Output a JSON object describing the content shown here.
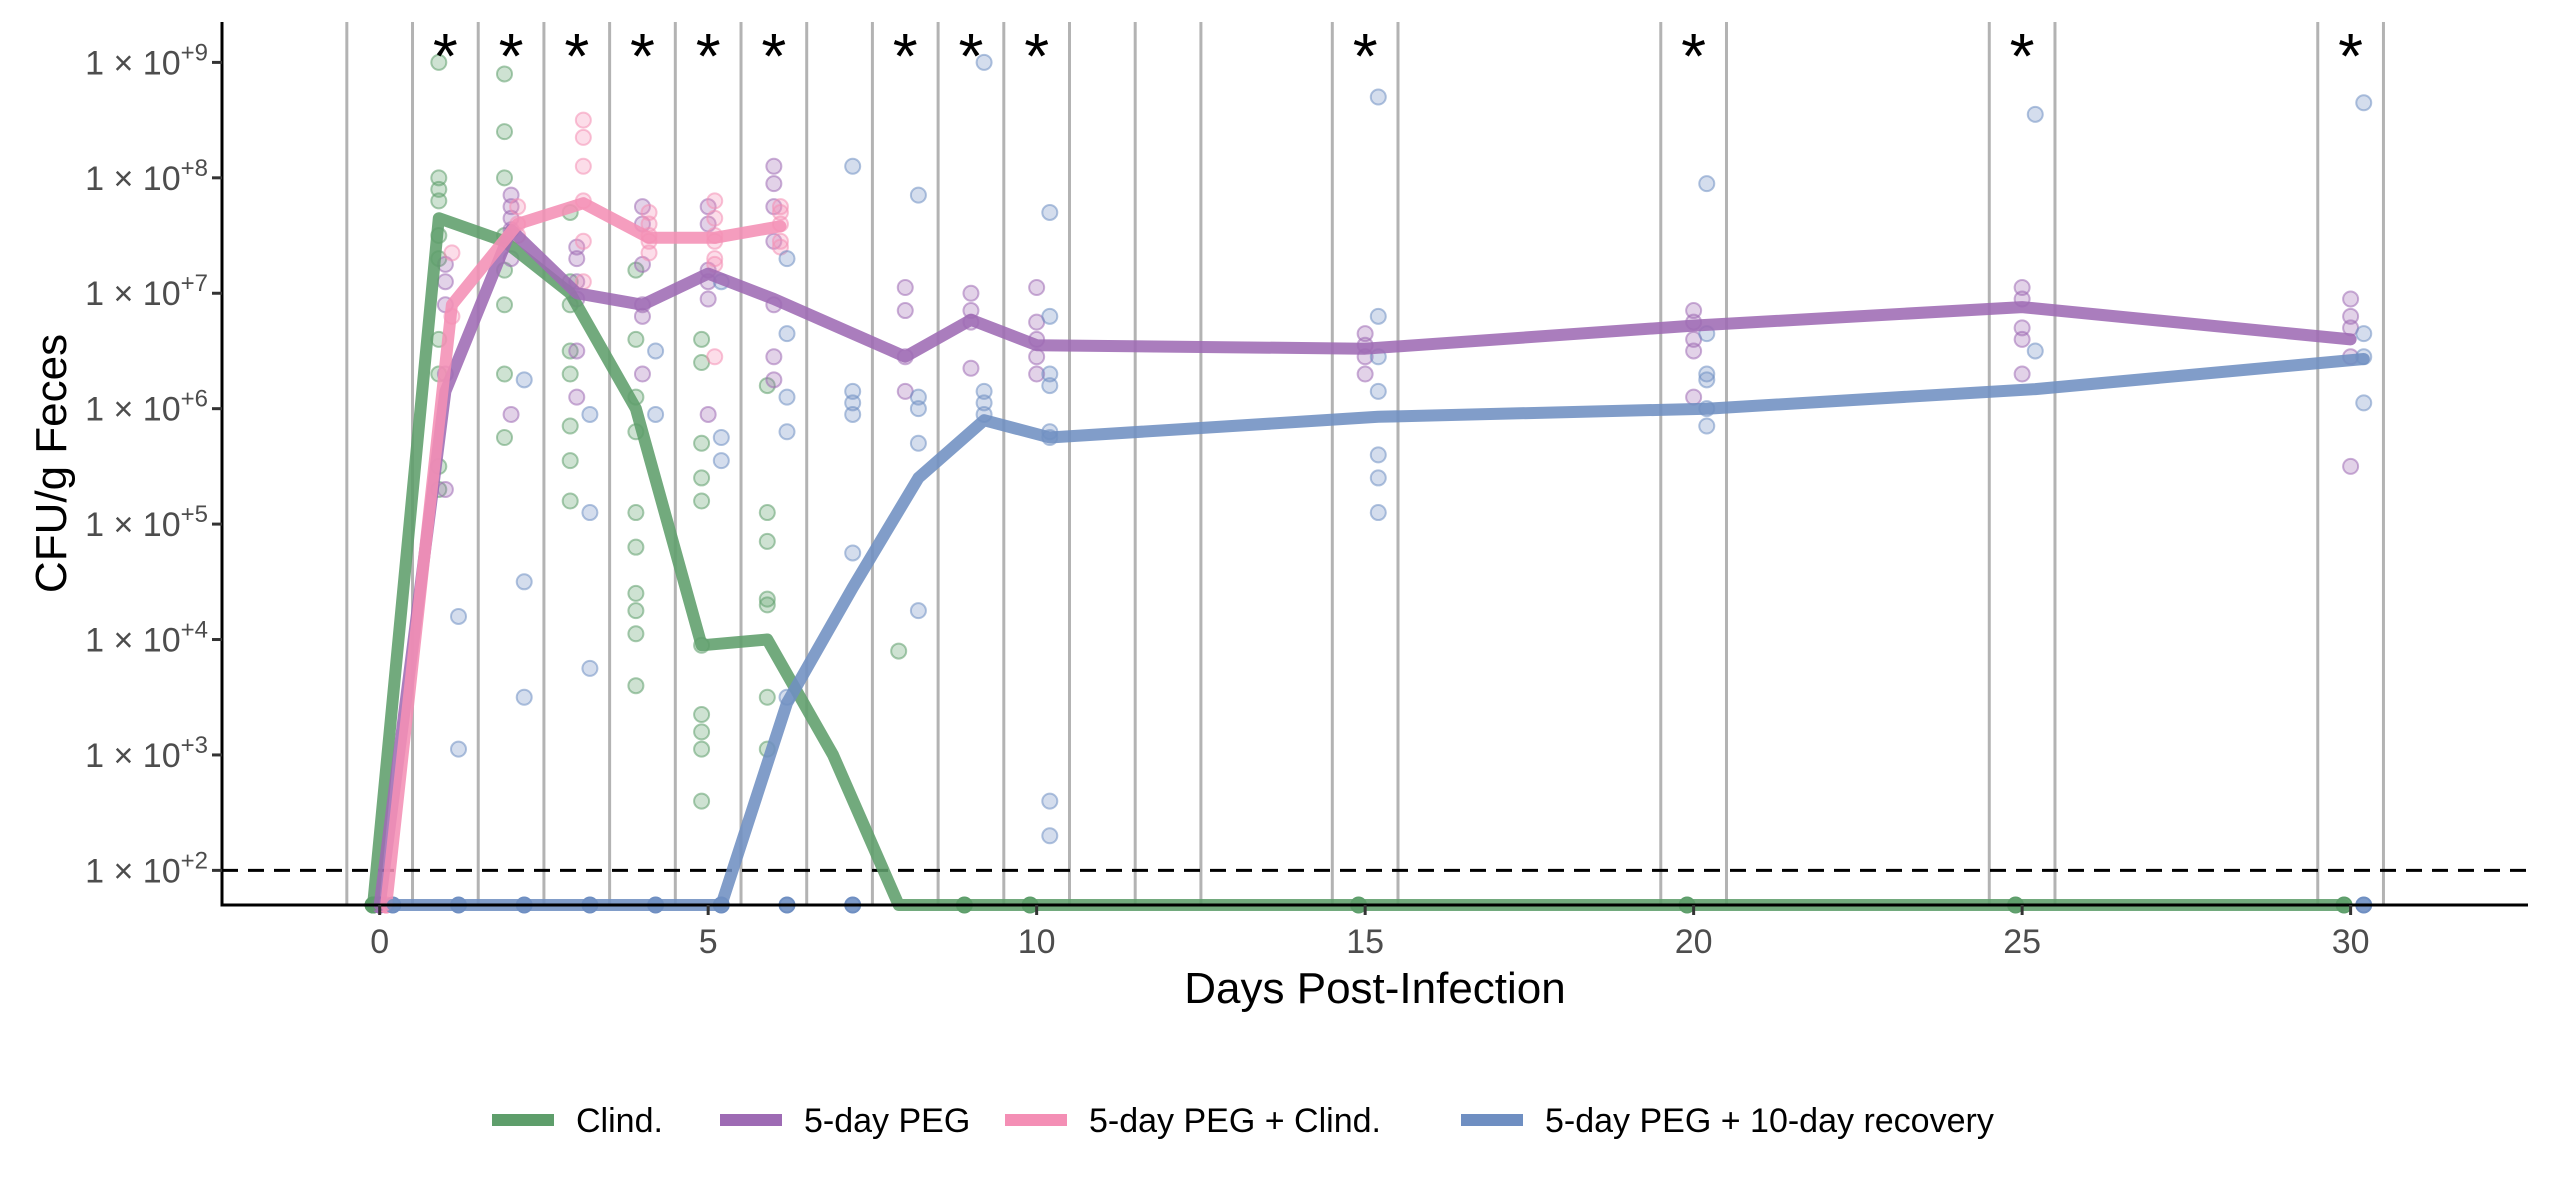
{
  "chart_data": {
    "type": "line",
    "title": "",
    "xlabel": "Days Post-Infection",
    "ylabel": "CFU/g Feces",
    "xlim": [
      -2.4,
      32.7
    ],
    "ylim_log10": [
      1.7,
      9.35
    ],
    "x_ticks": [
      0,
      5,
      10,
      15,
      20,
      25,
      30
    ],
    "x_tick_labels": [
      "0",
      "5",
      "10",
      "15",
      "20",
      "25",
      "30"
    ],
    "y_ticks": [
      {
        "value": 2,
        "base": "1 × 10",
        "exp": "+2"
      },
      {
        "value": 3,
        "base": "1 × 10",
        "exp": "+3"
      },
      {
        "value": 4,
        "base": "1 × 10",
        "exp": "+4"
      },
      {
        "value": 5,
        "base": "1 × 10",
        "exp": "+5"
      },
      {
        "value": 6,
        "base": "1 × 10",
        "exp": "+6"
      },
      {
        "value": 7,
        "base": "1 × 10",
        "exp": "+7"
      },
      {
        "value": 8,
        "base": "1 × 10",
        "exp": "+8"
      },
      {
        "value": 9,
        "base": "1 × 10",
        "exp": "+9"
      }
    ],
    "detection_limit_log10": 2,
    "baseline_log10": 1.7,
    "day_separators": [
      -0.5,
      0.5,
      1.5,
      2.5,
      3.5,
      4.5,
      5.5,
      6.5,
      7.5,
      8.5,
      9.5,
      10.5,
      11.5,
      12.5,
      14.5,
      15.5,
      19.5,
      20.5,
      24.5,
      25.5,
      29.5,
      30.5
    ],
    "significance": {
      "symbol": "*",
      "days": [
        1,
        2,
        3,
        4,
        5,
        6,
        8,
        9,
        10,
        15,
        20,
        25,
        30
      ]
    },
    "series": [
      {
        "name": "Clind.",
        "color": "#5e9e6b",
        "offset": -0.1,
        "median_log10": [
          [
            0,
            1.7
          ],
          [
            1,
            7.65
          ],
          [
            2,
            7.45
          ],
          [
            3,
            7.0
          ],
          [
            4,
            6.0
          ],
          [
            5,
            3.95
          ],
          [
            6,
            4.0
          ],
          [
            7,
            3.0
          ],
          [
            8,
            1.7
          ],
          [
            9,
            1.7
          ],
          [
            10,
            1.7
          ],
          [
            15,
            1.7
          ],
          [
            20,
            1.7
          ],
          [
            25,
            1.7
          ],
          [
            30,
            1.7
          ]
        ],
        "points_log10": [
          [
            0,
            [
              1.7,
              1.7,
              1.7
            ]
          ],
          [
            1,
            [
              9.0,
              8.0,
              7.9,
              7.8,
              7.5,
              7.3,
              6.6,
              6.3,
              5.5,
              5.3
            ]
          ],
          [
            2,
            [
              8.9,
              8.4,
              8.0,
              7.5,
              7.2,
              6.9,
              6.3,
              5.75
            ]
          ],
          [
            3,
            [
              7.7,
              7.1,
              6.9,
              6.5,
              6.3,
              5.85,
              5.55,
              5.2
            ]
          ],
          [
            4,
            [
              7.2,
              6.6,
              6.1,
              5.8,
              5.1,
              4.8,
              4.4,
              4.25,
              4.05,
              3.6
            ]
          ],
          [
            5,
            [
              6.6,
              6.4,
              5.7,
              5.4,
              5.2,
              3.95,
              3.35,
              3.2,
              3.05,
              2.6
            ]
          ],
          [
            6,
            [
              6.2,
              5.1,
              4.85,
              4.35,
              4.3,
              3.5,
              3.05
            ]
          ],
          [
            8,
            [
              3.9
            ]
          ],
          [
            9,
            [
              1.7
            ]
          ],
          [
            10,
            [
              1.7
            ]
          ],
          [
            15,
            [
              1.7
            ]
          ],
          [
            20,
            [
              1.7
            ]
          ],
          [
            25,
            [
              1.7
            ]
          ],
          [
            30,
            [
              1.7
            ]
          ]
        ]
      },
      {
        "name": "5-day PEG",
        "color": "#9e6bb4",
        "offset": 0,
        "median_log10": [
          [
            0,
            1.7
          ],
          [
            1,
            6.15
          ],
          [
            2,
            7.55
          ],
          [
            3,
            7.0
          ],
          [
            4,
            6.9
          ],
          [
            5,
            7.17
          ],
          [
            6,
            6.95
          ],
          [
            7,
            6.7
          ],
          [
            8,
            6.45
          ],
          [
            9,
            6.77
          ],
          [
            10,
            6.55
          ],
          [
            15,
            6.52
          ],
          [
            20,
            6.72
          ],
          [
            25,
            6.88
          ],
          [
            30,
            6.6
          ]
        ],
        "points_log10": [
          [
            0,
            [
              1.7,
              1.7
            ]
          ],
          [
            1,
            [
              7.25,
              7.1,
              6.9,
              6.3,
              5.3
            ]
          ],
          [
            2,
            [
              7.85,
              7.75,
              7.65,
              7.55,
              7.3,
              5.95
            ]
          ],
          [
            3,
            [
              7.4,
              7.3,
              7.1,
              6.95,
              6.5,
              6.1
            ]
          ],
          [
            4,
            [
              7.75,
              7.6,
              7.25,
              6.9,
              6.8,
              6.3
            ]
          ],
          [
            5,
            [
              7.75,
              7.6,
              7.2,
              7.1,
              6.95,
              5.95
            ]
          ],
          [
            6,
            [
              8.1,
              7.95,
              7.75,
              7.45,
              6.9,
              6.45,
              6.25
            ]
          ],
          [
            8,
            [
              7.05,
              6.85,
              6.45,
              6.15
            ]
          ],
          [
            9,
            [
              7.0,
              6.85,
              6.75,
              6.35
            ]
          ],
          [
            10,
            [
              7.05,
              6.75,
              6.6,
              6.45,
              6.3
            ]
          ],
          [
            15,
            [
              6.65,
              6.55,
              6.45,
              6.3
            ]
          ],
          [
            20,
            [
              6.85,
              6.75,
              6.6,
              6.5,
              6.1
            ]
          ],
          [
            25,
            [
              7.05,
              6.95,
              6.7,
              6.6,
              6.3
            ]
          ],
          [
            30,
            [
              6.95,
              6.8,
              6.7,
              6.45,
              5.5
            ]
          ]
        ]
      },
      {
        "name": "5-day PEG + Clind.",
        "color": "#f48fb5",
        "offset": 0.1,
        "median_log10": [
          [
            0,
            1.7
          ],
          [
            1,
            6.9
          ],
          [
            2,
            7.6
          ],
          [
            3,
            7.78
          ],
          [
            4,
            7.48
          ],
          [
            5,
            7.48
          ],
          [
            6,
            7.58
          ]
        ],
        "points_log10": [
          [
            0,
            [
              1.7
            ]
          ],
          [
            1,
            [
              7.35,
              6.8
            ]
          ],
          [
            2,
            [
              7.75,
              7.6,
              7.5
            ]
          ],
          [
            3,
            [
              8.5,
              8.35,
              8.1,
              7.8,
              7.45,
              7.1
            ]
          ],
          [
            4,
            [
              7.7,
              7.6,
              7.5,
              7.45,
              7.35
            ]
          ],
          [
            5,
            [
              7.8,
              7.65,
              7.5,
              7.45,
              7.3,
              7.25,
              6.45
            ]
          ],
          [
            6,
            [
              7.75,
              7.7,
              7.6,
              7.45,
              7.4
            ]
          ]
        ]
      },
      {
        "name": "5-day PEG + 10-day recovery",
        "color": "#6f8fc2",
        "offset": 0.2,
        "median_log10": [
          [
            0,
            1.7
          ],
          [
            1,
            1.7
          ],
          [
            2,
            1.7
          ],
          [
            3,
            1.7
          ],
          [
            4,
            1.7
          ],
          [
            5,
            1.7
          ],
          [
            6,
            3.45
          ],
          [
            7,
            4.45
          ],
          [
            8,
            5.4
          ],
          [
            9,
            5.9
          ],
          [
            10,
            5.75
          ],
          [
            15,
            5.93
          ],
          [
            20,
            6.0
          ],
          [
            25,
            6.17
          ],
          [
            30,
            6.43
          ]
        ],
        "points_log10": [
          [
            0,
            [
              1.7
            ]
          ],
          [
            1,
            [
              4.2,
              3.05,
              1.7
            ]
          ],
          [
            2,
            [
              6.25,
              4.5,
              3.5,
              1.7
            ]
          ],
          [
            3,
            [
              5.95,
              5.1,
              3.75,
              1.7
            ]
          ],
          [
            4,
            [
              6.5,
              5.95,
              1.7
            ]
          ],
          [
            5,
            [
              7.1,
              5.75,
              5.55,
              1.7
            ]
          ],
          [
            6,
            [
              7.3,
              6.65,
              6.1,
              5.8,
              3.5,
              1.7
            ]
          ],
          [
            7,
            [
              8.1,
              6.15,
              6.05,
              5.95,
              4.75,
              1.7
            ]
          ],
          [
            8,
            [
              7.85,
              6.1,
              6.0,
              5.7,
              4.25
            ]
          ],
          [
            9,
            [
              9.0,
              6.15,
              6.05,
              5.95
            ]
          ],
          [
            10,
            [
              7.7,
              6.8,
              6.3,
              6.2,
              5.8,
              5.75,
              2.6,
              2.3
            ]
          ],
          [
            15,
            [
              8.7,
              6.8,
              6.45,
              6.15,
              5.6,
              5.4,
              5.1
            ]
          ],
          [
            20,
            [
              7.95,
              6.65,
              6.3,
              6.25,
              6.0,
              5.85
            ]
          ],
          [
            25,
            [
              8.55,
              6.5
            ]
          ],
          [
            30,
            [
              8.65,
              6.65,
              6.45,
              6.05,
              1.7
            ]
          ]
        ]
      }
    ],
    "legend": {
      "position": "bottom",
      "entries": [
        "Clind.",
        "5-day PEG",
        "5-day PEG + Clind.",
        "5-day PEG + 10-day recovery"
      ]
    }
  }
}
